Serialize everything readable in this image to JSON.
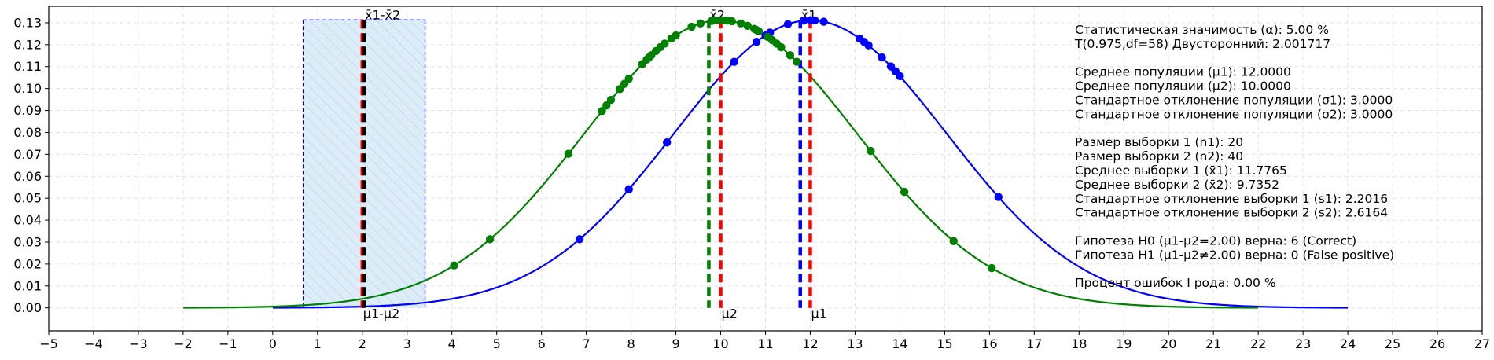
{
  "chart_data": {
    "type": "line",
    "xlim": [
      -5,
      27
    ],
    "ylim": [
      -0.0105,
      0.1375
    ],
    "x_ticks": [
      "−5",
      "−4",
      "−3",
      "−2",
      "−1",
      "0",
      "1",
      "2",
      "3",
      "4",
      "5",
      "6",
      "7",
      "8",
      "9",
      "10",
      "11",
      "12",
      "13",
      "14",
      "15",
      "16",
      "17",
      "18",
      "19",
      "20",
      "21",
      "22",
      "23",
      "24",
      "25",
      "26",
      "27"
    ],
    "y_ticks": [
      "0.00",
      "0.01",
      "0.02",
      "0.03",
      "0.04",
      "0.05",
      "0.06",
      "0.07",
      "0.08",
      "0.09",
      "0.10",
      "0.11",
      "0.12",
      "0.13"
    ],
    "grid": true,
    "series": [
      {
        "color": "#0000ff",
        "curve": {
          "mean": 12,
          "sd": 3.0424,
          "x_range": [
            0,
            24
          ]
        },
        "sample_x": [
          6.85,
          7.95,
          8.8,
          10.3,
          10.8,
          11.0,
          11.1,
          11.5,
          11.85,
          12.0,
          12.1,
          12.3,
          13.1,
          13.2,
          13.3,
          13.6,
          13.8,
          13.9,
          14.0,
          16.2
        ]
      },
      {
        "color": "#008000",
        "curve": {
          "mean": 10,
          "sd": 3.0424,
          "x_range": [
            -2,
            22
          ]
        },
        "sample_x": [
          4.05,
          4.85,
          6.6,
          7.35,
          7.45,
          7.55,
          7.75,
          7.85,
          7.95,
          8.25,
          8.35,
          8.4,
          8.45,
          8.55,
          8.65,
          8.75,
          8.9,
          9.0,
          9.35,
          9.55,
          9.8,
          9.9,
          10.05,
          10.15,
          10.25,
          10.45,
          10.6,
          10.75,
          10.8,
          10.85,
          11.05,
          11.15,
          11.25,
          11.35,
          11.55,
          11.7,
          13.35,
          14.1,
          15.2,
          16.05
        ]
      }
    ],
    "vlines": [
      {
        "x": 11.7765,
        "color": "#0000ff",
        "label": "x̄1"
      },
      {
        "x": 12.0,
        "color": "#ff0000",
        "label": "μ1"
      },
      {
        "x": 9.7352,
        "color": "#008000",
        "label": "x̄2"
      },
      {
        "x": 10.0,
        "color": "#ff0000",
        "label": "μ2"
      },
      {
        "x": 2.0,
        "color": "#ff0000",
        "label": "μ1-μ2"
      },
      {
        "x": 2.0413,
        "color": "#000000",
        "label": "x̄1-x̄2"
      }
    ],
    "interval": {
      "lo": 0.68,
      "hi": 3.4,
      "top": 0.1313
    },
    "stats_text": [
      "Статистическая значимость (α): 5.00 %",
      "T(0.975,df=58) Двусторонний: 2.001717",
      "",
      "Среднее популяции (μ1): 12.0000",
      "Среднее популяции (μ2): 10.0000",
      "Стандартное отклонение популяции (σ1): 3.0000",
      "Стандартное отклонение популяции (σ2): 3.0000",
      "",
      "Размер выборки 1 (n1): 20",
      "Размер выборки 2 (n2): 40",
      "Среднее выборки 1 (x̄1): 11.7765",
      "Среднее выборки 2 (x̄2): 9.7352",
      "Стандартное отклонение выборки 1 (s1): 2.2016",
      "Стандартное отклонение выборки 2 (s2): 2.6164",
      "",
      "Гипотеза H0 (μ1-μ2=2.00) верна: 6 (Correct)",
      "Гипотеза H1 (μ1-μ2≠2.00) верна: 0 (False positive)",
      "",
      "Процент ошибок I рода: 0.00 %"
    ]
  }
}
